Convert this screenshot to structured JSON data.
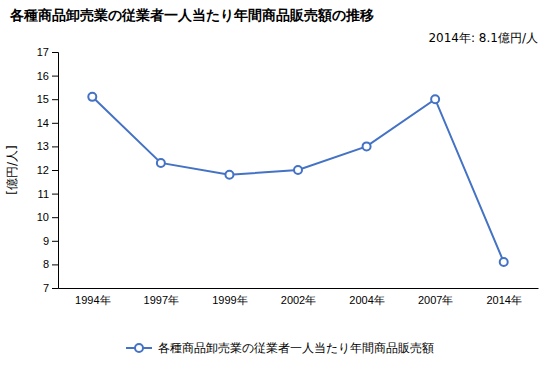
{
  "chart_data": {
    "type": "line",
    "title": "各種商品卸売業の従業者一人当たり年間商品販売額の推移",
    "ylabel": "[億円/人]",
    "annotation": "2014年: 8.1億円/人",
    "categories": [
      "1994年",
      "1997年",
      "1999年",
      "2002年",
      "2004年",
      "2007年",
      "2014年"
    ],
    "series": [
      {
        "name": "各種商品卸売業の従業者一人当たり年間商品販売額",
        "color": "#4472C4",
        "marker": "circle",
        "values": [
          15.1,
          12.3,
          11.8,
          12.0,
          13.0,
          15.0,
          8.1
        ]
      }
    ],
    "ylim": [
      7,
      17
    ],
    "yticks": [
      7,
      8,
      9,
      10,
      11,
      12,
      13,
      14,
      15,
      16,
      17
    ],
    "grid": false,
    "legend": "bottom"
  }
}
